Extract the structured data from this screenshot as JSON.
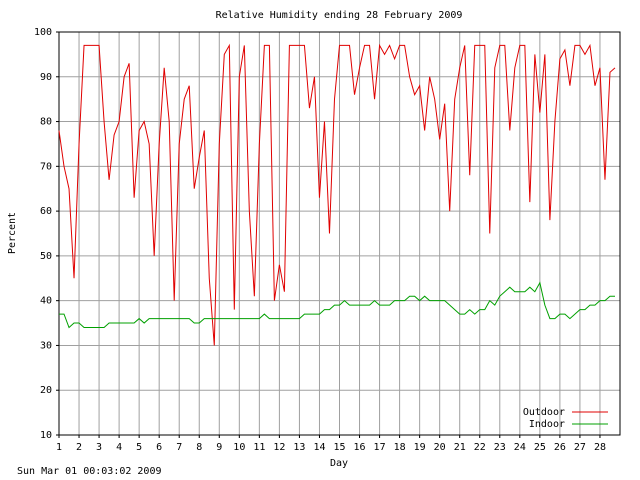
{
  "chart_data": {
    "type": "line",
    "title": "Relative Humidity ending 28 February 2009",
    "x_label": "Day",
    "y_label": "Percent",
    "footer": "Sun Mar 01 00:03:02 2009",
    "xlim": [
      1,
      29
    ],
    "xticks": [
      1,
      2,
      3,
      4,
      5,
      6,
      7,
      8,
      9,
      10,
      11,
      12,
      13,
      14,
      15,
      16,
      17,
      18,
      19,
      20,
      21,
      22,
      23,
      24,
      25,
      26,
      27,
      28
    ],
    "ylim": [
      10,
      100
    ],
    "yticks": [
      10,
      20,
      30,
      40,
      50,
      60,
      70,
      80,
      90,
      100
    ],
    "grid": true,
    "legend": "lower-right",
    "x": [
      1,
      1.25,
      1.5,
      1.75,
      2,
      2.25,
      2.5,
      2.75,
      3,
      3.25,
      3.5,
      3.75,
      4,
      4.25,
      4.5,
      4.75,
      5,
      5.25,
      5.5,
      5.75,
      6,
      6.25,
      6.5,
      6.75,
      7,
      7.25,
      7.5,
      7.75,
      8,
      8.25,
      8.5,
      8.75,
      9,
      9.25,
      9.5,
      9.75,
      10,
      10.25,
      10.5,
      10.75,
      11,
      11.25,
      11.5,
      11.75,
      12,
      12.25,
      12.5,
      12.75,
      13,
      13.25,
      13.5,
      13.75,
      14,
      14.25,
      14.5,
      14.75,
      15,
      15.25,
      15.5,
      15.75,
      16,
      16.25,
      16.5,
      16.75,
      17,
      17.25,
      17.5,
      17.75,
      18,
      18.25,
      18.5,
      18.75,
      19,
      19.25,
      19.5,
      19.75,
      20,
      20.25,
      20.5,
      20.75,
      21,
      21.25,
      21.5,
      21.75,
      22,
      22.25,
      22.5,
      22.75,
      23,
      23.25,
      23.5,
      23.75,
      24,
      24.25,
      24.5,
      24.75,
      25,
      25.25,
      25.5,
      25.75,
      26,
      26.25,
      26.5,
      26.75,
      27,
      27.25,
      27.5,
      27.75,
      28,
      28.25,
      28.5,
      28.75
    ],
    "series": [
      {
        "name": "Outdoor",
        "color": "#e00000",
        "values": [
          78,
          70,
          65,
          45,
          75,
          97,
          97,
          97,
          97,
          80,
          67,
          77,
          80,
          90,
          93,
          63,
          78,
          80,
          75,
          50,
          75,
          92,
          80,
          40,
          75,
          85,
          88,
          65,
          72,
          78,
          45,
          30,
          75,
          95,
          97,
          38,
          90,
          97,
          60,
          41,
          75,
          97,
          97,
          40,
          48,
          42,
          97,
          97,
          97,
          97,
          83,
          90,
          63,
          80,
          55,
          85,
          97,
          97,
          97,
          86,
          92,
          97,
          97,
          85,
          97,
          95,
          97,
          94,
          97,
          97,
          90,
          86,
          88,
          78,
          90,
          85,
          76,
          84,
          60,
          85,
          92,
          97,
          68,
          97,
          97,
          97,
          55,
          92,
          97,
          97,
          78,
          92,
          97,
          97,
          62,
          95,
          82,
          95,
          58,
          80,
          94,
          96,
          88,
          97,
          97,
          95,
          97,
          88,
          92,
          67,
          91,
          92
        ]
      },
      {
        "name": "Indoor",
        "color": "#00a000",
        "values": [
          37,
          37,
          34,
          35,
          35,
          34,
          34,
          34,
          34,
          34,
          35,
          35,
          35,
          35,
          35,
          35,
          36,
          35,
          36,
          36,
          36,
          36,
          36,
          36,
          36,
          36,
          36,
          35,
          35,
          36,
          36,
          36,
          36,
          36,
          36,
          36,
          36,
          36,
          36,
          36,
          36,
          37,
          36,
          36,
          36,
          36,
          36,
          36,
          36,
          37,
          37,
          37,
          37,
          38,
          38,
          39,
          39,
          40,
          39,
          39,
          39,
          39,
          39,
          40,
          39,
          39,
          39,
          40,
          40,
          40,
          41,
          41,
          40,
          41,
          40,
          40,
          40,
          40,
          39,
          38,
          37,
          37,
          38,
          37,
          38,
          38,
          40,
          39,
          41,
          42,
          43,
          42,
          42,
          42,
          43,
          42,
          44,
          39,
          36,
          36,
          37,
          37,
          36,
          37,
          38,
          38,
          39,
          39,
          40,
          40,
          41,
          41
        ]
      }
    ]
  }
}
